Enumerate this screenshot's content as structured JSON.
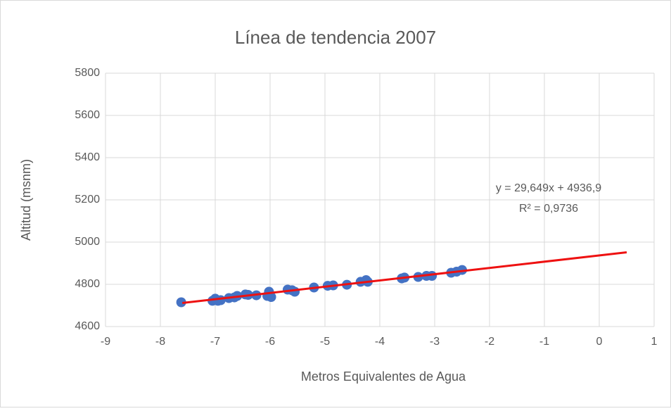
{
  "chart_data": {
    "type": "scatter",
    "title": "Línea de tendencia 2007",
    "xlabel": "Metros Equivalentes de Agua",
    "ylabel": "Altitud (msnm)",
    "xlim": [
      -9,
      1
    ],
    "xticks": [
      -9,
      -8,
      -7,
      -6,
      -5,
      -4,
      -3,
      -2,
      -1,
      0,
      1
    ],
    "ylim": [
      4600,
      5800
    ],
    "yticks": [
      4600,
      4800,
      5000,
      5200,
      5400,
      5600,
      5800
    ],
    "grid": true,
    "series": [
      {
        "color": "#4472c4",
        "x": [
          -7.62,
          -7.05,
          -7.0,
          -6.95,
          -6.9,
          -6.75,
          -6.65,
          -6.6,
          -6.45,
          -6.4,
          -6.25,
          -6.05,
          -6.02,
          -5.98,
          -5.68,
          -5.6,
          -5.55,
          -5.2,
          -4.95,
          -4.85,
          -4.6,
          -4.35,
          -4.25,
          -4.22,
          -3.6,
          -3.55,
          -3.3,
          -3.15,
          -3.05,
          -2.7,
          -2.6,
          -2.5
        ],
        "values": [
          4715,
          4722,
          4732,
          4722,
          4725,
          4735,
          4738,
          4745,
          4752,
          4750,
          4748,
          4745,
          4765,
          4740,
          4775,
          4772,
          4765,
          4785,
          4793,
          4795,
          4798,
          4812,
          4820,
          4812,
          4828,
          4832,
          4835,
          4840,
          4840,
          4855,
          4860,
          4868
        ]
      }
    ],
    "trendline": {
      "color": "#ee1111",
      "x": [
        -7.6,
        0.5
      ],
      "values": [
        4711.6,
        4951.7
      ],
      "annotations": [
        "y = 29,649x + 4936,9",
        "R² = 0,9736"
      ]
    }
  }
}
